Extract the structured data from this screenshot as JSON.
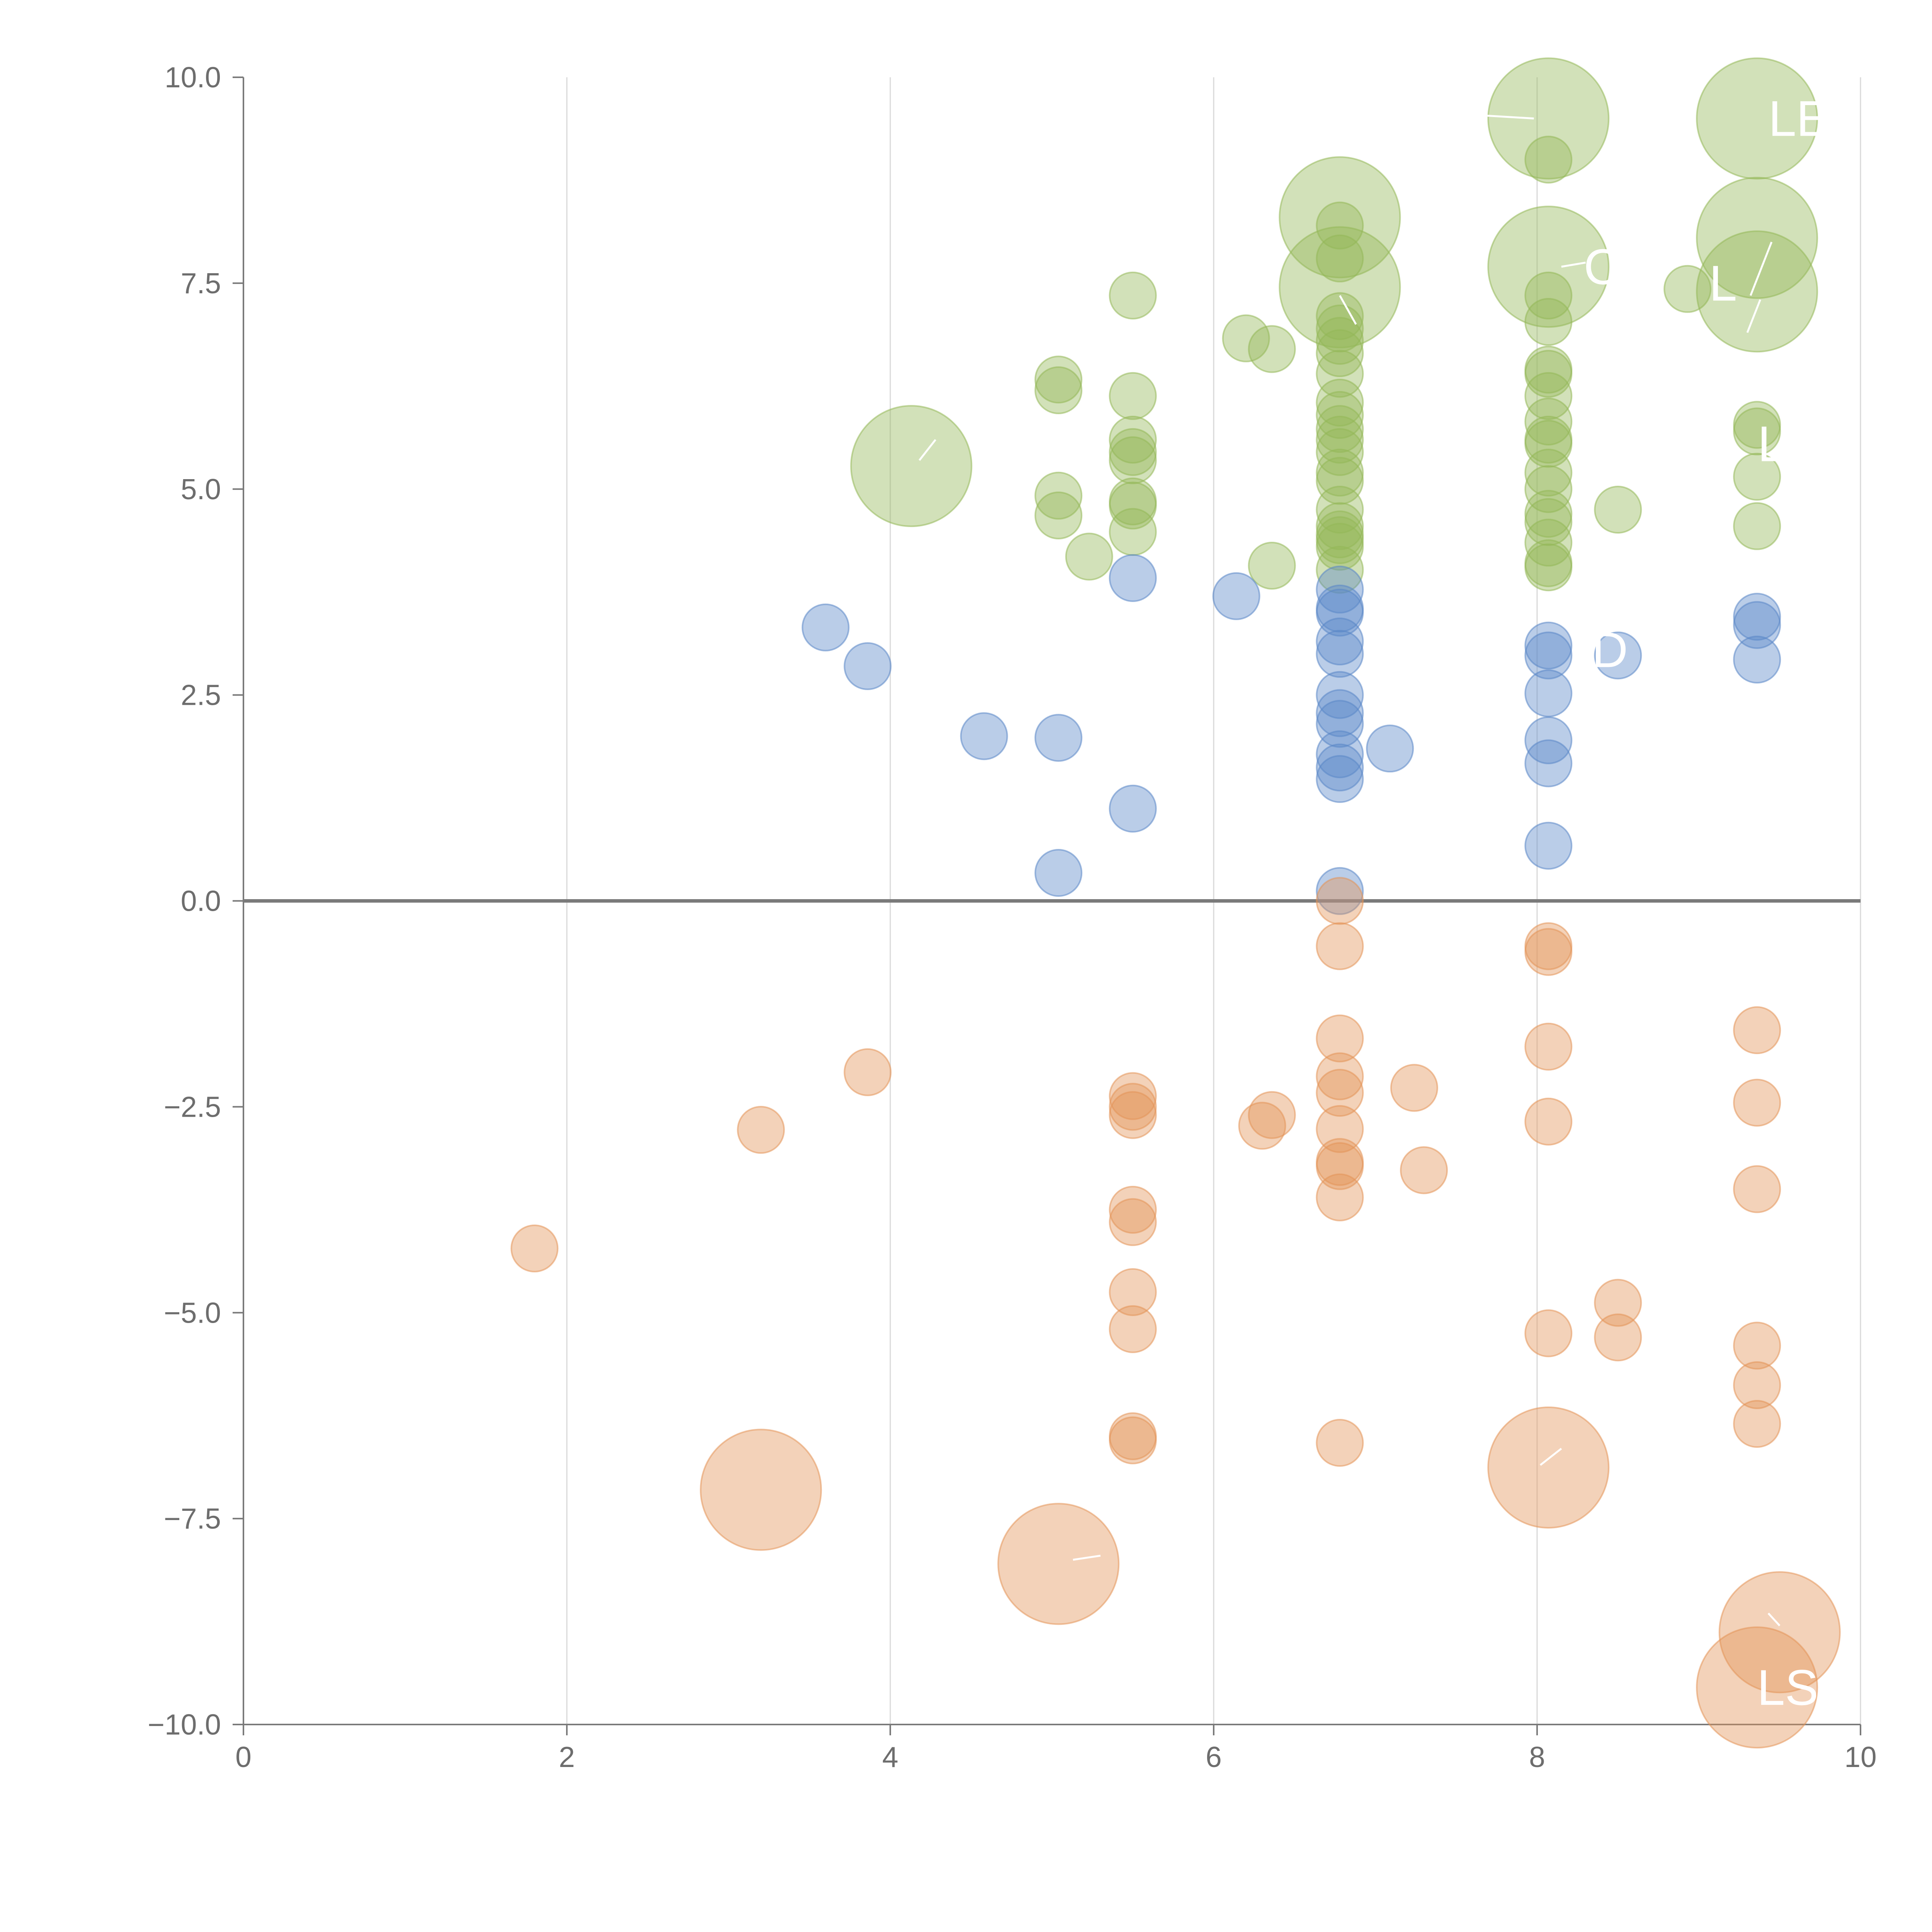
{
  "colors": {
    "positive_high": "#93b858",
    "positive_mid": "#5a87c7",
    "negative": "#e39457",
    "axis": "#7a7a7a",
    "grid": "#d9d9d9",
    "tick_text": "#6d6d6d",
    "annotation": "#ffffff"
  },
  "chart_data": {
    "type": "scatter",
    "title": "",
    "xlabel": "",
    "ylabel": "",
    "xlim": [
      0,
      10
    ],
    "ylim": [
      -10,
      10
    ],
    "x_ticks": [
      "0",
      "2",
      "4",
      "6",
      "8",
      "10"
    ],
    "y_ticks": [
      "10.0",
      "7.5",
      "5.0",
      "2.5",
      "0.0",
      "−2.5",
      "−5.0",
      "−7.5",
      "−10.0"
    ],
    "grid": "vertical",
    "legend": "none",
    "series": [
      {
        "color": "positive_high",
        "points": [
          [
            8.07,
            9.5,
            2.6
          ],
          [
            9.36,
            9.5,
            2.6
          ],
          [
            8.07,
            9.0,
            1
          ],
          [
            6.78,
            8.3,
            2.6
          ],
          [
            6.78,
            8.2,
            1
          ],
          [
            6.78,
            7.8,
            1
          ],
          [
            8.07,
            7.7,
            2.6
          ],
          [
            9.36,
            8.05,
            2.6
          ],
          [
            9.36,
            7.4,
            2.6
          ],
          [
            6.78,
            7.45,
            2.6
          ],
          [
            8.07,
            7.35,
            1
          ],
          [
            5.5,
            7.35,
            1
          ],
          [
            8.93,
            7.43,
            1
          ],
          [
            6.78,
            7.1,
            1
          ],
          [
            8.07,
            7.03,
            1
          ],
          [
            6.78,
            6.95,
            1
          ],
          [
            6.78,
            6.8,
            1
          ],
          [
            6.2,
            6.83,
            1
          ],
          [
            6.36,
            6.7,
            1
          ],
          [
            6.78,
            6.65,
            1
          ],
          [
            8.07,
            6.45,
            1
          ],
          [
            8.07,
            6.4,
            1
          ],
          [
            6.78,
            6.4,
            1
          ],
          [
            5.04,
            6.33,
            1
          ],
          [
            5.04,
            6.2,
            1
          ],
          [
            5.5,
            6.13,
            1
          ],
          [
            8.07,
            6.13,
            1
          ],
          [
            6.78,
            6.05,
            1
          ],
          [
            6.78,
            5.9,
            1
          ],
          [
            8.07,
            5.82,
            1
          ],
          [
            9.36,
            5.78,
            1
          ],
          [
            9.36,
            5.7,
            1
          ],
          [
            6.78,
            5.73,
            1
          ],
          [
            6.78,
            5.6,
            1
          ],
          [
            5.5,
            5.6,
            1
          ],
          [
            8.07,
            5.6,
            1
          ],
          [
            8.07,
            5.55,
            1
          ],
          [
            6.78,
            5.45,
            1
          ],
          [
            5.5,
            5.45,
            1
          ],
          [
            5.5,
            5.35,
            1
          ],
          [
            4.13,
            5.28,
            2.6
          ],
          [
            8.07,
            5.2,
            1
          ],
          [
            6.78,
            5.2,
            1
          ],
          [
            6.78,
            5.1,
            1
          ],
          [
            9.36,
            5.15,
            1
          ],
          [
            8.07,
            5.0,
            1
          ],
          [
            5.04,
            4.92,
            1
          ],
          [
            5.5,
            4.85,
            1
          ],
          [
            5.5,
            4.8,
            1
          ],
          [
            6.78,
            4.75,
            1
          ],
          [
            8.5,
            4.75,
            1
          ],
          [
            8.07,
            4.7,
            1
          ],
          [
            5.04,
            4.68,
            1
          ],
          [
            8.07,
            4.6,
            1
          ],
          [
            9.36,
            4.55,
            1
          ],
          [
            6.78,
            4.55,
            1
          ],
          [
            5.5,
            4.48,
            1
          ],
          [
            6.78,
            4.45,
            1
          ],
          [
            6.78,
            4.38,
            1
          ],
          [
            8.07,
            4.35,
            1
          ],
          [
            6.78,
            4.3,
            1
          ],
          [
            5.23,
            4.18,
            1
          ],
          [
            8.07,
            4.1,
            1
          ],
          [
            8.07,
            4.05,
            1
          ],
          [
            6.36,
            4.07,
            1
          ],
          [
            6.78,
            4.02,
            1
          ]
        ]
      },
      {
        "color": "positive_mid",
        "points": [
          [
            5.5,
            3.92,
            1
          ],
          [
            6.14,
            3.7,
            1
          ],
          [
            6.78,
            3.78,
            1
          ],
          [
            6.78,
            3.55,
            1
          ],
          [
            6.78,
            3.5,
            1
          ],
          [
            9.36,
            3.45,
            1
          ],
          [
            9.36,
            3.35,
            1
          ],
          [
            3.6,
            3.32,
            1
          ],
          [
            6.78,
            3.15,
            1
          ],
          [
            8.07,
            3.1,
            1
          ],
          [
            6.78,
            3.0,
            1
          ],
          [
            8.07,
            2.98,
            1
          ],
          [
            8.5,
            2.98,
            1
          ],
          [
            9.36,
            2.93,
            1
          ],
          [
            3.86,
            2.85,
            1
          ],
          [
            6.78,
            2.5,
            1
          ],
          [
            8.07,
            2.52,
            1
          ],
          [
            6.78,
            2.28,
            1
          ],
          [
            6.78,
            2.15,
            1
          ],
          [
            4.58,
            2.0,
            1
          ],
          [
            5.04,
            1.98,
            1
          ],
          [
            8.07,
            1.95,
            1
          ],
          [
            7.09,
            1.85,
            1
          ],
          [
            6.78,
            1.78,
            1
          ],
          [
            8.07,
            1.67,
            1
          ],
          [
            6.78,
            1.62,
            1
          ],
          [
            6.78,
            1.48,
            1
          ],
          [
            5.5,
            1.12,
            1
          ],
          [
            8.07,
            0.67,
            1
          ],
          [
            5.04,
            0.34,
            1
          ],
          [
            6.78,
            0.12,
            1
          ]
        ]
      },
      {
        "color": "negative",
        "points": [
          [
            6.78,
            0.0,
            1
          ],
          [
            8.07,
            -0.55,
            1
          ],
          [
            8.07,
            -0.62,
            1
          ],
          [
            6.78,
            -0.55,
            1
          ],
          [
            9.36,
            -1.57,
            1
          ],
          [
            6.78,
            -1.67,
            1
          ],
          [
            8.07,
            -1.77,
            1
          ],
          [
            3.86,
            -2.08,
            1
          ],
          [
            6.78,
            -2.13,
            1
          ],
          [
            7.24,
            -2.27,
            1
          ],
          [
            6.78,
            -2.33,
            1
          ],
          [
            5.5,
            -2.37,
            1
          ],
          [
            9.36,
            -2.45,
            1
          ],
          [
            5.5,
            -2.5,
            1
          ],
          [
            5.5,
            -2.6,
            1
          ],
          [
            6.36,
            -2.6,
            1
          ],
          [
            8.07,
            -2.68,
            1
          ],
          [
            6.3,
            -2.73,
            1
          ],
          [
            6.78,
            -2.77,
            1
          ],
          [
            3.2,
            -2.78,
            1
          ],
          [
            6.78,
            -3.17,
            1
          ],
          [
            6.78,
            -3.22,
            1
          ],
          [
            7.3,
            -3.27,
            1
          ],
          [
            9.36,
            -3.5,
            1
          ],
          [
            6.78,
            -3.6,
            1
          ],
          [
            5.5,
            -3.75,
            1
          ],
          [
            5.5,
            -3.9,
            1
          ],
          [
            1.8,
            -4.22,
            1
          ],
          [
            5.5,
            -4.75,
            1
          ],
          [
            8.5,
            -4.88,
            1
          ],
          [
            5.5,
            -5.2,
            1
          ],
          [
            8.07,
            -5.25,
            1
          ],
          [
            8.5,
            -5.3,
            1
          ],
          [
            9.36,
            -5.4,
            1
          ],
          [
            9.36,
            -5.88,
            1
          ],
          [
            9.36,
            -6.35,
            1
          ],
          [
            5.5,
            -6.5,
            1
          ],
          [
            5.5,
            -6.55,
            1
          ],
          [
            6.78,
            -6.58,
            1
          ],
          [
            8.07,
            -6.88,
            2.6
          ],
          [
            3.2,
            -7.15,
            2.6
          ],
          [
            5.04,
            -8.05,
            2.6
          ],
          [
            9.5,
            -8.88,
            2.6
          ],
          [
            9.36,
            -9.55,
            2.6
          ]
        ]
      }
    ],
    "annotations": [
      {
        "text": "LE",
        "x": 9.62,
        "y": 9.5
      },
      {
        "text": "C",
        "x": 8.4,
        "y": 7.7
      },
      {
        "text": "L",
        "x": 9.15,
        "y": 7.5
      },
      {
        "text": "L",
        "x": 9.45,
        "y": 5.55
      },
      {
        "text": "D",
        "x": 8.45,
        "y": 3.05
      },
      {
        "text": "LS",
        "x": 9.55,
        "y": -9.55
      }
    ],
    "leader_lines": [
      [
        [
          7.55,
          9.55
        ],
        [
          7.98,
          9.5
        ]
      ],
      [
        [
          6.78,
          7.35
        ],
        [
          6.88,
          7.0
        ]
      ],
      [
        [
          8.15,
          7.7
        ],
        [
          8.3,
          7.75
        ]
      ],
      [
        [
          9.45,
          8.0
        ],
        [
          9.32,
          7.35
        ]
      ],
      [
        [
          9.38,
          7.3
        ],
        [
          9.3,
          6.9
        ]
      ],
      [
        [
          4.28,
          5.6
        ],
        [
          4.18,
          5.35
        ]
      ],
      [
        [
          8.15,
          -6.65
        ],
        [
          8.02,
          -6.85
        ]
      ],
      [
        [
          5.13,
          -8.0
        ],
        [
          5.3,
          -7.95
        ]
      ],
      [
        [
          9.43,
          -8.65
        ],
        [
          9.5,
          -8.8
        ]
      ]
    ]
  }
}
